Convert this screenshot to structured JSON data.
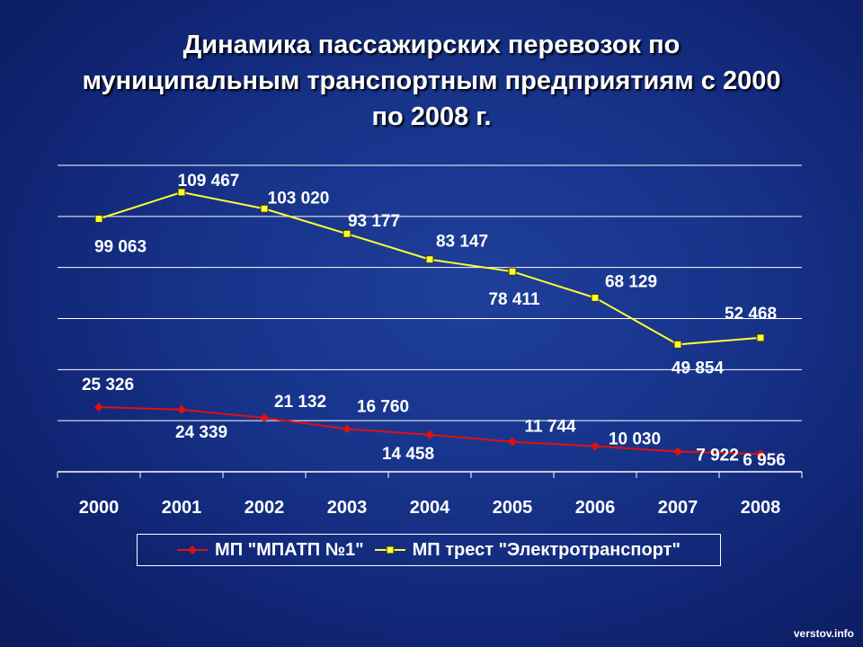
{
  "title_lines": [
    "Динамика пассажирских перевозок по",
    "муниципальным транспортным предприятиям с 2000",
    "по 2008 г."
  ],
  "watermark": "verstov.info",
  "colors": {
    "series_red": "#e01010",
    "series_yellow": "#ffff33",
    "grid": "#ffffff"
  },
  "chart_data": {
    "type": "line",
    "title": "Динамика пассажирских перевозок по муниципальным транспортным предприятиям с 2000 по 2008 г.",
    "xlabel": "",
    "ylabel": "",
    "categories": [
      "2000",
      "2001",
      "2002",
      "2003",
      "2004",
      "2005",
      "2006",
      "2007",
      "2008"
    ],
    "ylim": [
      0,
      120000
    ],
    "grid": true,
    "legend_position": "bottom",
    "series": [
      {
        "name": "МП \"МПАТП №1\"",
        "color": "#e01010",
        "marker": "diamond",
        "values": [
          25326,
          24339,
          21132,
          16760,
          14458,
          11744,
          10030,
          7922,
          6956
        ],
        "labels": [
          "25 326",
          "24 339",
          "21 132",
          "16 760",
          "14 458",
          "11 744",
          "10 030",
          "7 922",
          "6 956"
        ]
      },
      {
        "name": "МП трест \"Электротранспорт\"",
        "color": "#ffff33",
        "marker": "square",
        "values": [
          99063,
          109467,
          103020,
          93177,
          83147,
          78411,
          68129,
          49854,
          52468
        ],
        "labels": [
          "99 063",
          "109 467",
          "103 020",
          "93 177",
          "83 147",
          "78 411",
          "68 129",
          "49 854",
          "52 468"
        ]
      }
    ]
  }
}
